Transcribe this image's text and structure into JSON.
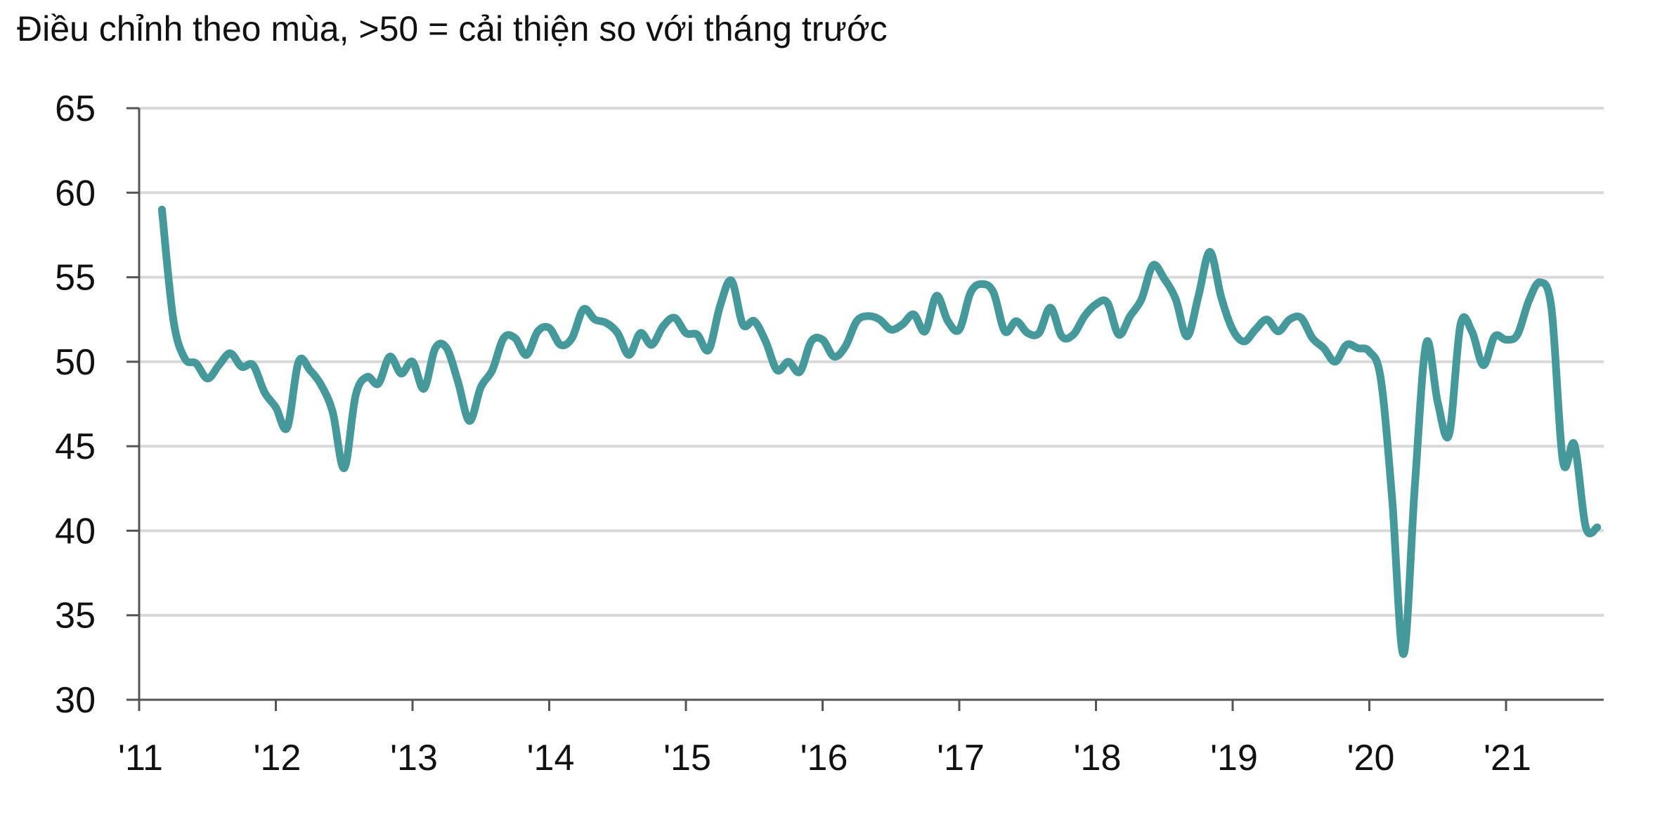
{
  "subtitle": "Điều chỉnh theo mùa, >50 = cải thiện so với tháng trước",
  "chart_data": {
    "type": "line",
    "title": "",
    "subtitle": "Điều chỉnh theo mùa, >50 = cải thiện so với tháng trước",
    "xlabel": "",
    "ylabel": "",
    "ylim": [
      30,
      65
    ],
    "xlim": [
      "2011-01",
      "2021-10"
    ],
    "y_ticks": [
      "65",
      "60",
      "55",
      "50",
      "45",
      "40",
      "35",
      "30"
    ],
    "y_tick_values": [
      65,
      60,
      55,
      50,
      45,
      40,
      35,
      30
    ],
    "x_ticks": [
      "'11",
      "'12",
      "'13",
      "'14",
      "'15",
      "'16",
      "'17",
      "'18",
      "'19",
      "'20",
      "'21"
    ],
    "x_tick_values": [
      "2011-01",
      "2012-01",
      "2013-01",
      "2014-01",
      "2015-01",
      "2016-01",
      "2017-01",
      "2018-01",
      "2019-01",
      "2020-01",
      "2021-01"
    ],
    "grid": "horizontal",
    "legend": "none",
    "line_color": "#45999A",
    "gridline_color": "#d9d9d9",
    "axis_color": "#555555",
    "series": [
      {
        "x": [
          "2011-03",
          "2011-04",
          "2011-05",
          "2011-06",
          "2011-07",
          "2011-08",
          "2011-09",
          "2011-10",
          "2011-11",
          "2011-12",
          "2012-01",
          "2012-02",
          "2012-03",
          "2012-04",
          "2012-05",
          "2012-06",
          "2012-07",
          "2012-08",
          "2012-09",
          "2012-10",
          "2012-11",
          "2012-12",
          "2013-01",
          "2013-02",
          "2013-03",
          "2013-04",
          "2013-05",
          "2013-06",
          "2013-07",
          "2013-08",
          "2013-09",
          "2013-10",
          "2013-11",
          "2013-12",
          "2014-01",
          "2014-02",
          "2014-03",
          "2014-04",
          "2014-05",
          "2014-06",
          "2014-07",
          "2014-08",
          "2014-09",
          "2014-10",
          "2014-11",
          "2014-12",
          "2015-01",
          "2015-02",
          "2015-03",
          "2015-04",
          "2015-05",
          "2015-06",
          "2015-07",
          "2015-08",
          "2015-09",
          "2015-10",
          "2015-11",
          "2015-12",
          "2016-01",
          "2016-02",
          "2016-03",
          "2016-04",
          "2016-05",
          "2016-06",
          "2016-07",
          "2016-08",
          "2016-09",
          "2016-10",
          "2016-11",
          "2016-12",
          "2017-01",
          "2017-02",
          "2017-03",
          "2017-04",
          "2017-05",
          "2017-06",
          "2017-07",
          "2017-08",
          "2017-09",
          "2017-10",
          "2017-11",
          "2017-12",
          "2018-01",
          "2018-02",
          "2018-03",
          "2018-04",
          "2018-05",
          "2018-06",
          "2018-07",
          "2018-08",
          "2018-09",
          "2018-10",
          "2018-11",
          "2018-12",
          "2019-01",
          "2019-02",
          "2019-03",
          "2019-04",
          "2019-05",
          "2019-06",
          "2019-07",
          "2019-08",
          "2019-09",
          "2019-10",
          "2019-11",
          "2019-12",
          "2020-01",
          "2020-02",
          "2020-03",
          "2020-04",
          "2020-05",
          "2020-06",
          "2020-07",
          "2020-08",
          "2020-09",
          "2020-10",
          "2020-11",
          "2020-12",
          "2021-01",
          "2021-02",
          "2021-03",
          "2021-04",
          "2021-05",
          "2021-06",
          "2021-07",
          "2021-08",
          "2021-09"
        ],
        "values": [
          59.0,
          52.5,
          50.2,
          49.9,
          49.0,
          49.8,
          50.5,
          49.7,
          49.8,
          48.2,
          47.3,
          46.1,
          50.0,
          49.5,
          48.6,
          47.0,
          43.7,
          48.0,
          49.1,
          48.7,
          50.3,
          49.3,
          50.0,
          48.4,
          50.8,
          50.8,
          48.8,
          46.5,
          48.5,
          49.5,
          51.4,
          51.4,
          50.4,
          51.8,
          52.0,
          51.0,
          51.4,
          53.1,
          52.5,
          52.3,
          51.7,
          50.4,
          51.7,
          51.0,
          52.1,
          52.6,
          51.7,
          51.6,
          50.7,
          53.3,
          54.8,
          52.2,
          52.4,
          51.2,
          49.5,
          50.0,
          49.4,
          51.2,
          51.3,
          50.3,
          50.9,
          52.4,
          52.7,
          52.5,
          51.9,
          52.2,
          52.8,
          51.8,
          53.9,
          52.4,
          51.9,
          54.1,
          54.6,
          54.1,
          51.8,
          52.4,
          51.7,
          51.7,
          53.2,
          51.5,
          51.6,
          52.7,
          53.4,
          53.5,
          51.6,
          52.7,
          53.7,
          55.7,
          54.9,
          53.7,
          51.5,
          53.9,
          56.5,
          53.8,
          51.9,
          51.2,
          51.9,
          52.5,
          51.8,
          52.5,
          52.6,
          51.4,
          50.8,
          50.0,
          51.0,
          50.8,
          50.6,
          49.0,
          41.9,
          32.7,
          42.7,
          51.1,
          47.6,
          45.7,
          52.2,
          51.8,
          49.8,
          51.5,
          51.3,
          51.6,
          53.6,
          54.7,
          53.1,
          44.1,
          45.1,
          40.2,
          40.2
        ]
      }
    ]
  }
}
